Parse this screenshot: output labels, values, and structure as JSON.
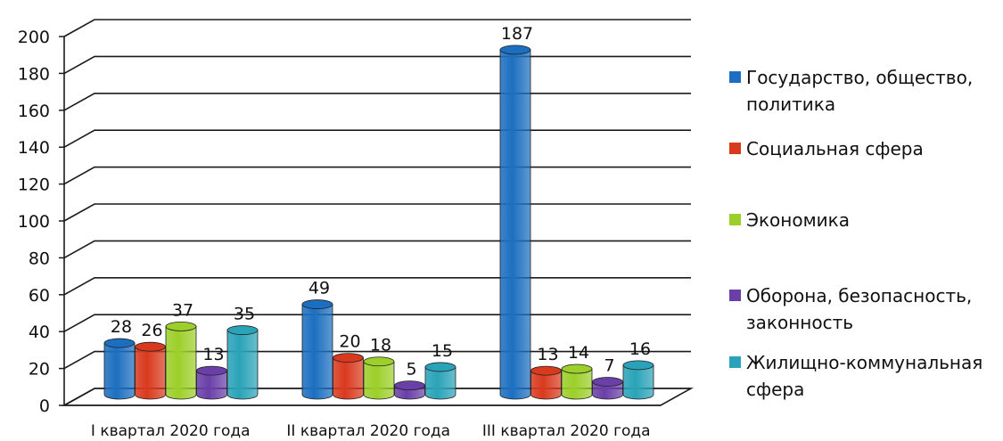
{
  "chart_data": {
    "type": "bar",
    "categories": [
      "I квартал 2020 года",
      "II квартал 2020 года",
      "III квартал 2020 года"
    ],
    "series": [
      {
        "name": "Государство, общество, политика",
        "values": [
          28,
          49,
          187
        ],
        "color": "#1c6fc0"
      },
      {
        "name": "Социальная сфера",
        "values": [
          26,
          20,
          13
        ],
        "color": "#d93a1e"
      },
      {
        "name": "Экономика",
        "values": [
          37,
          18,
          14
        ],
        "color": "#9ccf2a"
      },
      {
        "name": "Оборона, безопасность, законность",
        "values": [
          13,
          5,
          7
        ],
        "color": "#6a3fa8"
      },
      {
        "name": "Жилищно-коммунальная сфера",
        "values": [
          35,
          15,
          16
        ],
        "color": "#2aa3b8"
      }
    ],
    "yticks": [
      0,
      20,
      40,
      60,
      80,
      100,
      120,
      140,
      160,
      180,
      200
    ],
    "ylim": [
      0,
      200
    ],
    "grid": true,
    "legend_position": "right",
    "title": "",
    "xlabel": "",
    "ylabel": ""
  }
}
